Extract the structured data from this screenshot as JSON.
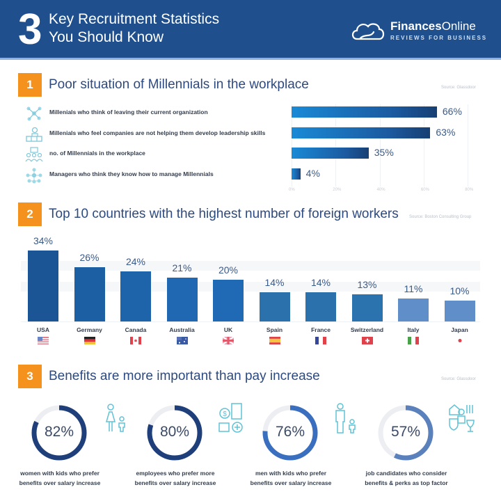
{
  "header": {
    "number": "3",
    "title_line1": "Key Recruitment Statistics",
    "title_line2": "You Should Know",
    "logo": {
      "icon": "cloud-logo-icon",
      "name_bold": "Finances",
      "name_regular": "Online",
      "tagline": "REVIEWS FOR BUSINESS"
    }
  },
  "colors": {
    "header_bg": "#1f4f8c",
    "section_badge": "#f5921e",
    "title_text": "#2d4a80",
    "bar_dark": "#1b5aa0",
    "bar_light": "#5f8ec9",
    "ring_dark": "#1f3f7a",
    "ring_mid": "#3a6fc0",
    "ring_light": "#5b81bd",
    "icon_teal": "#5fc3d6"
  },
  "sections": [
    {
      "number": "1",
      "title": "Poor situation of Millennials in the workplace",
      "source": "Source: Glassdoor"
    },
    {
      "number": "2",
      "title": "Top 10 countries with the highest number of foreign workers",
      "source": "Source: Boston Consulting Group"
    },
    {
      "number": "3",
      "title": "Benefits are more important than pay increase",
      "source": "Source: Glassdoor"
    }
  ],
  "section1": {
    "rows": [
      {
        "icon": "network-people-icon",
        "label": "Millenials who think of leaving their current organization",
        "value": 66,
        "display": "66%"
      },
      {
        "icon": "leader-podium-icon",
        "label": "Millenials who feel companies are not helping them develop leadership skills",
        "value": 63,
        "display": "63%"
      },
      {
        "icon": "workplace-team-icon",
        "label": "no. of Millennials in the workplace",
        "value": 35,
        "display": "35%"
      },
      {
        "icon": "manager-hierarchy-icon",
        "label": "Managers who think they know how to manage Millennials",
        "value": 4,
        "display": "4%"
      }
    ],
    "ticks": [
      "0%",
      "20%",
      "40%",
      "60%",
      "80%"
    ]
  },
  "section2": {
    "countries": [
      {
        "name": "USA",
        "value": 34,
        "display": "34%",
        "flag": "usa-flag-icon"
      },
      {
        "name": "Germany",
        "value": 26,
        "display": "26%",
        "flag": "germany-flag-icon"
      },
      {
        "name": "Canada",
        "value": 24,
        "display": "24%",
        "flag": "canada-flag-icon"
      },
      {
        "name": "Australia",
        "value": 21,
        "display": "21%",
        "flag": "australia-flag-icon"
      },
      {
        "name": "UK",
        "value": 20,
        "display": "20%",
        "flag": "uk-flag-icon"
      },
      {
        "name": "Spain",
        "value": 14,
        "display": "14%",
        "flag": "spain-flag-icon"
      },
      {
        "name": "France",
        "value": 14,
        "display": "14%",
        "flag": "france-flag-icon"
      },
      {
        "name": "Switzerland",
        "value": 13,
        "display": "13%",
        "flag": "switzerland-flag-icon"
      },
      {
        "name": "Italy",
        "value": 11,
        "display": "11%",
        "flag": "italy-flag-icon"
      },
      {
        "name": "Japan",
        "value": 10,
        "display": "10%",
        "flag": "japan-flag-icon"
      }
    ]
  },
  "section3": {
    "items": [
      {
        "value": 82,
        "display": "82%",
        "line1": "women with kids who prefer",
        "line2": "benefits over salary increase",
        "icon": "mother-child-icon"
      },
      {
        "value": 80,
        "display": "80%",
        "line1": "employees who prefer more",
        "line2": "benefits over salary increase",
        "icon": "money-benefits-icon"
      },
      {
        "value": 76,
        "display": "76%",
        "line1": "men with kids who prefer",
        "line2": "benefits over salary increase",
        "icon": "father-child-icon"
      },
      {
        "value": 57,
        "display": "57%",
        "line1": "job candidates who consider",
        "line2": "benefits & perks as top factor",
        "icon": "perks-icon"
      }
    ]
  },
  "chart_data": [
    {
      "type": "bar",
      "orientation": "horizontal",
      "title": "Poor situation of Millennials in the workplace",
      "categories": [
        "Millenials who think of leaving their current organization",
        "Millenials who feel companies are not helping them develop leadership skills",
        "no. of Millennials in the workplace",
        "Managers who think they know how to manage Millennials"
      ],
      "values": [
        66,
        63,
        35,
        4
      ],
      "xlabel": "",
      "ylabel": "",
      "xlim": [
        0,
        80
      ],
      "ticks": [
        "0%",
        "20%",
        "40%",
        "60%",
        "80%"
      ],
      "grid": true,
      "source": "Source: Glassdoor"
    },
    {
      "type": "bar",
      "orientation": "vertical",
      "title": "Top 10 countries with the highest number of foreign workers",
      "categories": [
        "USA",
        "Germany",
        "Canada",
        "Australia",
        "UK",
        "Spain",
        "France",
        "Switzerland",
        "Italy",
        "Japan"
      ],
      "values": [
        34,
        26,
        24,
        21,
        20,
        14,
        14,
        13,
        11,
        10
      ],
      "xlabel": "",
      "ylabel": "",
      "ylim": [
        0,
        35
      ],
      "grid": false,
      "source": "Source: Boston Consulting Group"
    },
    {
      "type": "pie",
      "style": "donut-gauges",
      "title": "Benefits are more important than pay increase",
      "categories": [
        "women with kids who prefer benefits over salary increase",
        "employees who prefer more benefits over salary increase",
        "men with kids who prefer benefits over salary increase",
        "job candidates who consider benefits & perks as top factor"
      ],
      "values": [
        82,
        80,
        76,
        57
      ],
      "source": "Source: Glassdoor"
    }
  ]
}
